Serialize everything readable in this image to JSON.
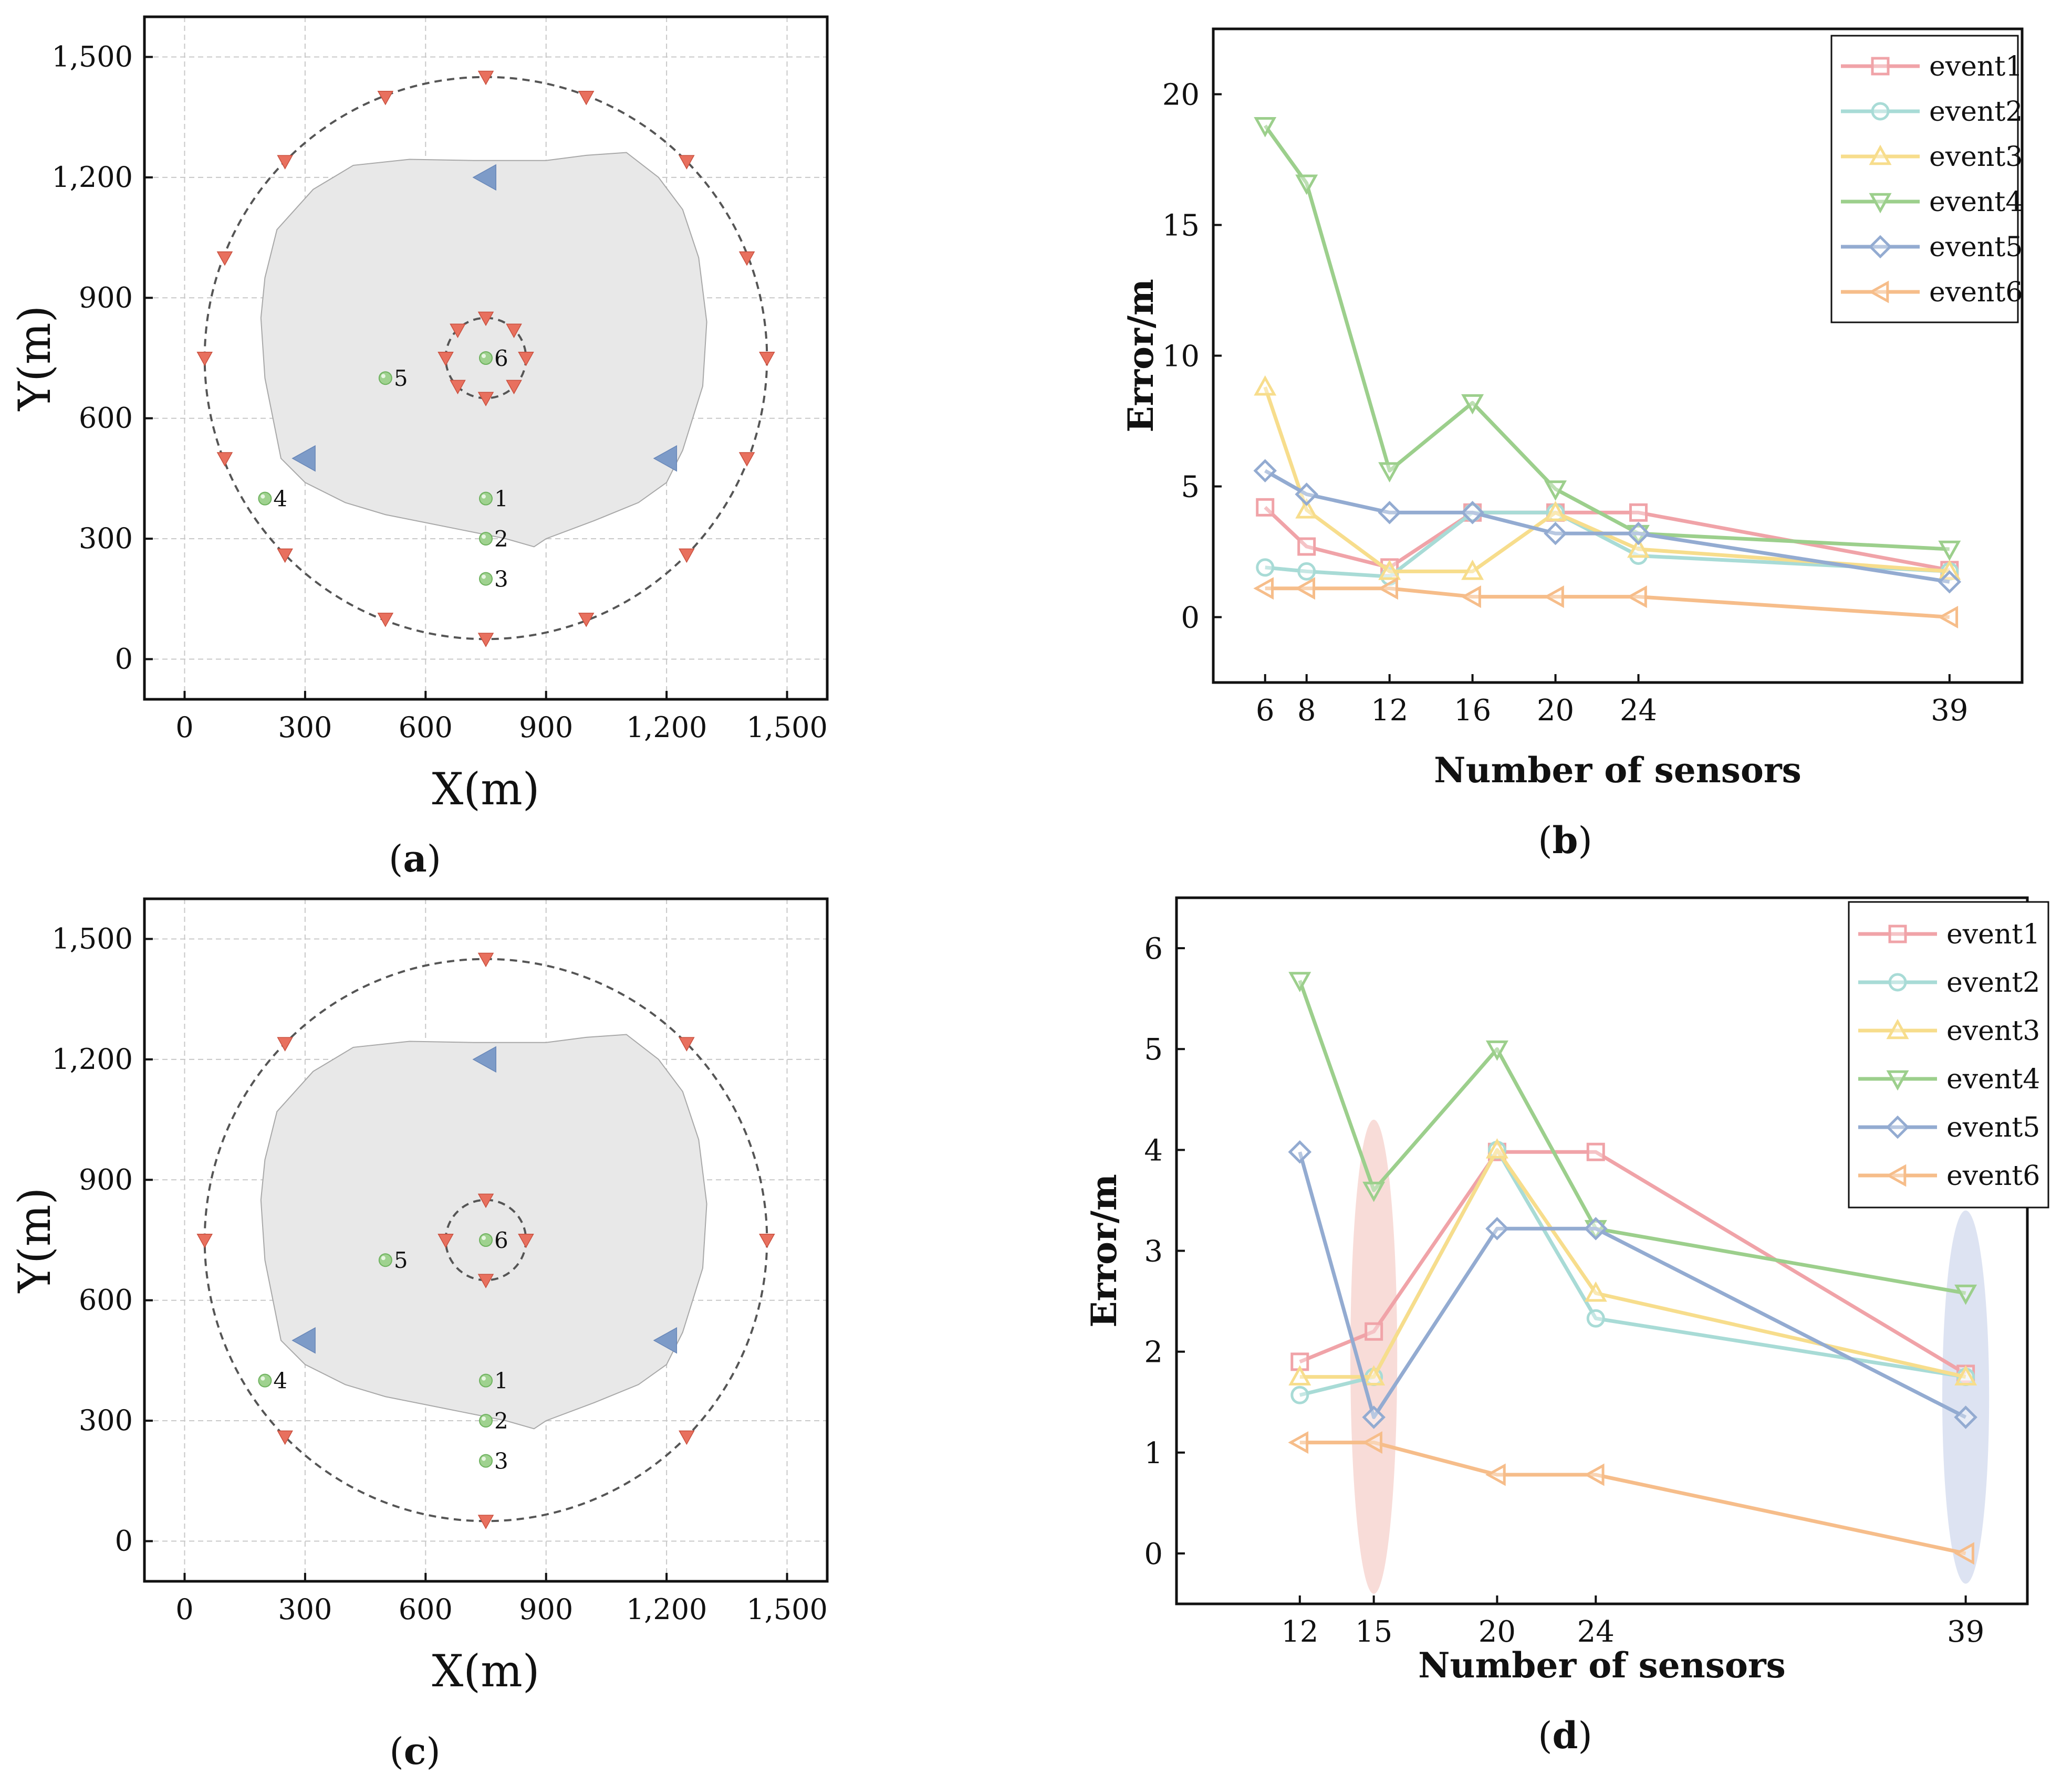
{
  "colors": {
    "event1": "#f0a3a8",
    "event2": "#a8dbd6",
    "event3": "#f7dd8c",
    "event4": "#9ccf8c",
    "event5": "#93abd1",
    "event6": "#f6bd8a",
    "sensor_outer": "#e8705e",
    "sensor_blue": "#7d9bc8",
    "shaded_area": "#e8e8e8",
    "source_point": "#9fd28f",
    "highlight_red": "#f4c4be",
    "highlight_blue": "#c6d1ea"
  },
  "panels": {
    "a": {
      "label_open": "(",
      "label_letter": "a",
      "label_close": ")"
    },
    "b": {
      "label_open": "(",
      "label_letter": "b",
      "label_close": ")"
    },
    "c": {
      "label_open": "(",
      "label_letter": "c",
      "label_close": ")"
    },
    "d": {
      "label_open": "(",
      "label_letter": "d",
      "label_close": ")"
    }
  },
  "chart_data": [
    {
      "id": "a",
      "type": "scatter",
      "title": "",
      "xlabel": "X(m)",
      "ylabel": "Y(m)",
      "xlim": [
        -100,
        1600
      ],
      "ylim": [
        -100,
        1600
      ],
      "xticks": [
        0,
        300,
        600,
        900,
        1200,
        1500
      ],
      "xtick_labels": [
        "0",
        "300",
        "600",
        "900",
        "1,200",
        "1,500"
      ],
      "yticks": [
        0,
        300,
        600,
        900,
        1200,
        1500
      ],
      "ytick_labels": [
        "0",
        "300",
        "600",
        "900",
        "1,200",
        "1,500"
      ],
      "grid": true,
      "circles": [
        {
          "center": [
            750,
            750
          ],
          "radius": 700,
          "style": "dashed"
        },
        {
          "center": [
            750,
            750
          ],
          "radius": 100,
          "style": "dashed"
        }
      ],
      "sensors_outer": [
        [
          750,
          1450
        ],
        [
          1000,
          1400
        ],
        [
          1250,
          1240
        ],
        [
          1400,
          1000
        ],
        [
          1450,
          750
        ],
        [
          1400,
          500
        ],
        [
          1250,
          260
        ],
        [
          1000,
          100
        ],
        [
          750,
          50
        ],
        [
          500,
          100
        ],
        [
          250,
          260
        ],
        [
          100,
          500
        ],
        [
          50,
          750
        ],
        [
          100,
          1000
        ],
        [
          250,
          1240
        ],
        [
          500,
          1400
        ]
      ],
      "sensors_inner": [
        [
          750,
          850
        ],
        [
          820,
          820
        ],
        [
          850,
          750
        ],
        [
          820,
          680
        ],
        [
          750,
          650
        ],
        [
          680,
          680
        ],
        [
          650,
          750
        ],
        [
          680,
          820
        ]
      ],
      "sensors_blue": [
        {
          "x": 750,
          "y": 1200,
          "dir": "left"
        },
        {
          "x": 300,
          "y": 500,
          "dir": "left"
        },
        {
          "x": 1200,
          "y": 500,
          "dir": "left"
        }
      ],
      "events": [
        {
          "label": "1",
          "x": 750,
          "y": 400
        },
        {
          "label": "2",
          "x": 750,
          "y": 300
        },
        {
          "label": "3",
          "x": 750,
          "y": 200
        },
        {
          "label": "4",
          "x": 200,
          "y": 400
        },
        {
          "label": "5",
          "x": 500,
          "y": 700
        },
        {
          "label": "6",
          "x": 750,
          "y": 750
        }
      ],
      "shaded_region": [
        [
          230,
          1070
        ],
        [
          320,
          1170
        ],
        [
          420,
          1230
        ],
        [
          560,
          1245
        ],
        [
          720,
          1242
        ],
        [
          900,
          1242
        ],
        [
          1000,
          1255
        ],
        [
          1100,
          1262
        ],
        [
          1180,
          1200
        ],
        [
          1240,
          1120
        ],
        [
          1280,
          1000
        ],
        [
          1300,
          840
        ],
        [
          1290,
          680
        ],
        [
          1240,
          520
        ],
        [
          1200,
          440
        ],
        [
          1130,
          390
        ],
        [
          1020,
          345
        ],
        [
          900,
          300
        ],
        [
          870,
          280
        ],
        [
          800,
          300
        ],
        [
          700,
          320
        ],
        [
          600,
          340
        ],
        [
          500,
          360
        ],
        [
          400,
          390
        ],
        [
          300,
          440
        ],
        [
          240,
          500
        ],
        [
          220,
          600
        ],
        [
          200,
          700
        ],
        [
          190,
          850
        ],
        [
          200,
          950
        ]
      ]
    },
    {
      "id": "b",
      "type": "line",
      "title": "",
      "xlabel": "Number of sensors",
      "ylabel": "Error/m",
      "x": [
        6,
        8,
        12,
        16,
        20,
        24,
        39
      ],
      "xticks": [
        6,
        8,
        12,
        16,
        20,
        24,
        39
      ],
      "xlim": [
        3.5,
        42.5
      ],
      "yticks": [
        0,
        5,
        10,
        15,
        20
      ],
      "ylim": [
        -2.5,
        22.5
      ],
      "grid": false,
      "legend": "top-right",
      "series": [
        {
          "name": "event1",
          "marker": "square",
          "values": [
            4.2,
            2.7,
            1.9,
            4.0,
            4.0,
            4.0,
            1.8
          ]
        },
        {
          "name": "event2",
          "marker": "circle",
          "values": [
            1.9,
            1.75,
            1.55,
            4.0,
            4.0,
            2.35,
            1.75
          ]
        },
        {
          "name": "event3",
          "marker": "triangle-up",
          "values": [
            8.8,
            4.1,
            1.75,
            1.75,
            4.0,
            2.6,
            1.75
          ]
        },
        {
          "name": "event4",
          "marker": "triangle-down",
          "values": [
            18.8,
            16.6,
            5.6,
            8.2,
            4.9,
            3.2,
            2.6
          ]
        },
        {
          "name": "event5",
          "marker": "diamond",
          "values": [
            5.6,
            4.7,
            4.0,
            4.0,
            3.2,
            3.2,
            1.35
          ]
        },
        {
          "name": "event6",
          "marker": "triangle-left",
          "values": [
            1.1,
            1.1,
            1.1,
            0.78,
            0.78,
            0.78,
            0.0
          ]
        }
      ]
    },
    {
      "id": "c",
      "type": "scatter",
      "title": "",
      "xlabel": "X(m)",
      "ylabel": "Y(m)",
      "xlim": [
        -100,
        1600
      ],
      "ylim": [
        -100,
        1600
      ],
      "xticks": [
        0,
        300,
        600,
        900,
        1200,
        1500
      ],
      "xtick_labels": [
        "0",
        "300",
        "600",
        "900",
        "1,200",
        "1,500"
      ],
      "yticks": [
        0,
        300,
        600,
        900,
        1200,
        1500
      ],
      "ytick_labels": [
        "0",
        "300",
        "600",
        "900",
        "1,200",
        "1,500"
      ],
      "grid": true,
      "circles": [
        {
          "center": [
            750,
            750
          ],
          "radius": 700,
          "style": "dashed"
        },
        {
          "center": [
            750,
            750
          ],
          "radius": 100,
          "style": "dashed"
        }
      ],
      "sensors_outer": [
        [
          750,
          1450
        ],
        [
          1250,
          1240
        ],
        [
          1450,
          750
        ],
        [
          1250,
          260
        ],
        [
          750,
          50
        ],
        [
          250,
          260
        ],
        [
          50,
          750
        ],
        [
          250,
          1240
        ]
      ],
      "sensors_inner": [
        [
          750,
          850
        ],
        [
          850,
          750
        ],
        [
          750,
          650
        ],
        [
          650,
          750
        ]
      ],
      "sensors_blue": [
        {
          "x": 750,
          "y": 1200,
          "dir": "left"
        },
        {
          "x": 300,
          "y": 500,
          "dir": "left"
        },
        {
          "x": 1200,
          "y": 500,
          "dir": "left"
        }
      ],
      "events": [
        {
          "label": "1",
          "x": 750,
          "y": 400
        },
        {
          "label": "2",
          "x": 750,
          "y": 300
        },
        {
          "label": "3",
          "x": 750,
          "y": 200
        },
        {
          "label": "4",
          "x": 200,
          "y": 400
        },
        {
          "label": "5",
          "x": 500,
          "y": 700
        },
        {
          "label": "6",
          "x": 750,
          "y": 750
        }
      ],
      "shaded_region": [
        [
          230,
          1070
        ],
        [
          320,
          1170
        ],
        [
          420,
          1230
        ],
        [
          560,
          1245
        ],
        [
          720,
          1242
        ],
        [
          900,
          1242
        ],
        [
          1000,
          1255
        ],
        [
          1100,
          1262
        ],
        [
          1180,
          1200
        ],
        [
          1240,
          1120
        ],
        [
          1280,
          1000
        ],
        [
          1300,
          840
        ],
        [
          1290,
          680
        ],
        [
          1240,
          520
        ],
        [
          1200,
          440
        ],
        [
          1130,
          390
        ],
        [
          1020,
          345
        ],
        [
          900,
          300
        ],
        [
          870,
          280
        ],
        [
          800,
          300
        ],
        [
          700,
          320
        ],
        [
          600,
          340
        ],
        [
          500,
          360
        ],
        [
          400,
          390
        ],
        [
          300,
          440
        ],
        [
          240,
          500
        ],
        [
          220,
          600
        ],
        [
          200,
          700
        ],
        [
          190,
          850
        ],
        [
          200,
          950
        ]
      ]
    },
    {
      "id": "d",
      "type": "line",
      "title": "",
      "xlabel": "Number of sensors",
      "ylabel": "Error/m",
      "x": [
        12,
        15,
        20,
        24,
        39
      ],
      "xticks": [
        12,
        15,
        20,
        24,
        39
      ],
      "xlim": [
        7,
        41.5
      ],
      "yticks": [
        0,
        1,
        2,
        3,
        4,
        5,
        6
      ],
      "ylim": [
        -0.5,
        6.5
      ],
      "grid": false,
      "legend": "top-right",
      "highlights": [
        {
          "x": 15,
          "y_center": 1.95,
          "x_radius": 0.95,
          "y_radius": 2.35,
          "color": "highlight_red"
        },
        {
          "x": 39,
          "y_center": 1.55,
          "x_radius": 0.95,
          "y_radius": 1.85,
          "color": "highlight_blue"
        }
      ],
      "series": [
        {
          "name": "event1",
          "marker": "square",
          "values": [
            1.9,
            2.2,
            3.98,
            3.98,
            1.78
          ]
        },
        {
          "name": "event2",
          "marker": "circle",
          "values": [
            1.57,
            1.75,
            4.0,
            2.33,
            1.75
          ]
        },
        {
          "name": "event3",
          "marker": "triangle-up",
          "values": [
            1.75,
            1.75,
            4.0,
            2.58,
            1.75
          ]
        },
        {
          "name": "event4",
          "marker": "triangle-down",
          "values": [
            5.68,
            3.6,
            5.0,
            3.22,
            2.58
          ]
        },
        {
          "name": "event5",
          "marker": "diamond",
          "values": [
            3.98,
            1.35,
            3.22,
            3.22,
            1.35
          ]
        },
        {
          "name": "event6",
          "marker": "triangle-left",
          "values": [
            1.1,
            1.1,
            0.78,
            0.78,
            0.0
          ]
        }
      ]
    }
  ]
}
